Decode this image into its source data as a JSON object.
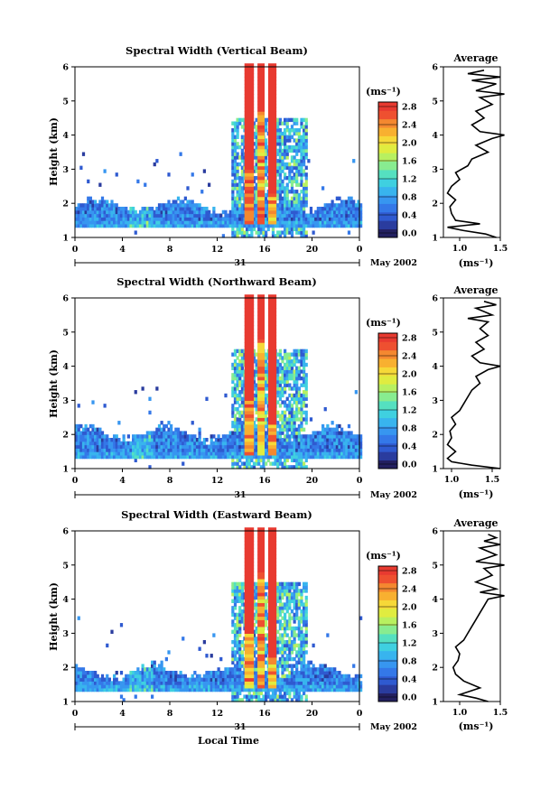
{
  "chart_data": [
    {
      "type": "heatmap",
      "title": "Spectral Width (Vertical Beam)",
      "ylabel": "Height (km)",
      "xlabel": "",
      "x_ticks": [
        "0",
        "4",
        "8",
        "12",
        "16",
        "20",
        "0"
      ],
      "y_ticks": [
        "1",
        "2",
        "3",
        "4",
        "5",
        "6"
      ],
      "xlim": [
        0,
        24
      ],
      "ylim": [
        1,
        6
      ],
      "date_day": "31",
      "date_month": "May 2002",
      "colorbar": {
        "unit": "(ms⁻¹)",
        "ticks": [
          "0.0",
          "0.4",
          "0.8",
          "1.2",
          "1.6",
          "2.0",
          "2.4",
          "2.8"
        ],
        "range": [
          0,
          3.0
        ]
      },
      "clutter_top_km": 1.9,
      "average": {
        "title": "Average",
        "xlabel": "(ms⁻¹)",
        "x_ticks": [
          "1.0",
          "1.5"
        ],
        "xlim": [
          0.8,
          1.5
        ],
        "heights": [
          1.0,
          1.1,
          1.2,
          1.3,
          1.4,
          1.5,
          1.7,
          1.9,
          2.1,
          2.3,
          2.5,
          2.7,
          2.9,
          3.1,
          3.3,
          3.5,
          3.7,
          3.9,
          4.0,
          4.1,
          4.3,
          4.5,
          4.7,
          4.9,
          5.1,
          5.2,
          5.3,
          5.5,
          5.6,
          5.7,
          5.8,
          5.9
        ],
        "values": [
          1.45,
          1.32,
          1.05,
          0.85,
          1.25,
          0.95,
          0.9,
          0.88,
          0.95,
          0.85,
          0.9,
          1.0,
          0.95,
          1.1,
          1.15,
          1.35,
          1.2,
          1.4,
          1.55,
          1.25,
          1.15,
          1.3,
          1.2,
          1.4,
          1.25,
          1.55,
          1.2,
          1.45,
          1.15,
          1.5,
          1.1,
          1.3
        ]
      }
    },
    {
      "type": "heatmap",
      "title": "Spectral Width (Northward Beam)",
      "ylabel": "Height (km)",
      "xlabel": "",
      "x_ticks": [
        "0",
        "4",
        "8",
        "12",
        "16",
        "20",
        "0"
      ],
      "y_ticks": [
        "1",
        "2",
        "3",
        "4",
        "5",
        "6"
      ],
      "xlim": [
        0,
        24
      ],
      "ylim": [
        1,
        6
      ],
      "date_day": "31",
      "date_month": "May 2002",
      "colorbar": {
        "unit": "(ms⁻¹)",
        "ticks": [
          "0.0",
          "0.4",
          "0.8",
          "1.2",
          "1.6",
          "2.0",
          "2.4",
          "2.8"
        ],
        "range": [
          0,
          3.0
        ]
      },
      "clutter_top_km": 2.0,
      "average": {
        "title": "Average",
        "xlabel": "(ms⁻¹)",
        "x_ticks": [
          "1.0",
          "1.5"
        ],
        "xlim": [
          0.9,
          1.6
        ],
        "heights": [
          1.0,
          1.1,
          1.2,
          1.3,
          1.5,
          1.7,
          1.9,
          2.1,
          2.3,
          2.5,
          2.7,
          2.9,
          3.1,
          3.3,
          3.5,
          3.7,
          3.9,
          4.0,
          4.1,
          4.3,
          4.5,
          4.7,
          4.9,
          5.1,
          5.3,
          5.4,
          5.5,
          5.7,
          5.8,
          5.9
        ],
        "values": [
          1.6,
          1.25,
          1.0,
          0.95,
          1.05,
          0.95,
          1.0,
          0.98,
          1.05,
          1.0,
          1.1,
          1.15,
          1.2,
          1.25,
          1.35,
          1.3,
          1.45,
          1.6,
          1.35,
          1.25,
          1.4,
          1.3,
          1.45,
          1.35,
          1.45,
          1.2,
          1.5,
          1.3,
          1.55,
          1.4
        ]
      }
    },
    {
      "type": "heatmap",
      "title": "Spectral Width (Eastward Beam)",
      "ylabel": "Height (km)",
      "xlabel": "Local Time",
      "x_ticks": [
        "0",
        "4",
        "8",
        "12",
        "16",
        "20",
        "0"
      ],
      "y_ticks": [
        "1",
        "2",
        "3",
        "4",
        "5",
        "6"
      ],
      "xlim": [
        0,
        24
      ],
      "ylim": [
        1,
        6
      ],
      "date_day": "31",
      "date_month": "May 2002",
      "colorbar": {
        "unit": "(ms⁻¹)",
        "ticks": [
          "0.0",
          "0.4",
          "0.8",
          "1.2",
          "1.6",
          "2.0",
          "2.4",
          "2.8"
        ],
        "range": [
          0,
          3.0
        ]
      },
      "clutter_top_km": 1.85,
      "average": {
        "title": "Average",
        "xlabel": "(ms⁻¹)",
        "x_ticks": [
          "1.0",
          "1.5"
        ],
        "xlim": [
          0.8,
          1.5
        ],
        "heights": [
          1.0,
          1.1,
          1.2,
          1.4,
          1.6,
          1.8,
          2.0,
          2.2,
          2.4,
          2.6,
          2.8,
          3.0,
          3.2,
          3.4,
          3.6,
          3.8,
          4.0,
          4.1,
          4.2,
          4.3,
          4.5,
          4.7,
          4.9,
          5.0,
          5.1,
          5.3,
          5.5,
          5.6,
          5.7,
          5.8,
          5.9
        ],
        "values": [
          1.35,
          1.2,
          1.0,
          1.25,
          1.05,
          0.95,
          0.92,
          0.98,
          1.0,
          0.95,
          1.05,
          1.1,
          1.15,
          1.2,
          1.25,
          1.3,
          1.35,
          1.55,
          1.25,
          1.45,
          1.2,
          1.4,
          1.3,
          1.55,
          1.2,
          1.45,
          1.25,
          1.5,
          1.3,
          1.45,
          1.35
        ]
      }
    }
  ]
}
